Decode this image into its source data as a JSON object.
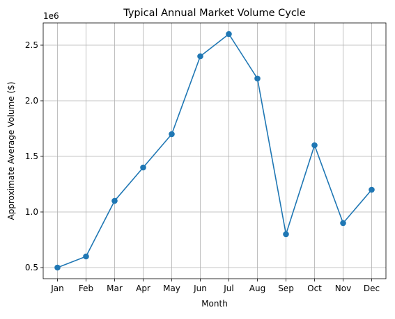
{
  "chart_data": {
    "type": "line",
    "title": "Typical Annual Market Volume Cycle",
    "xlabel": "Month",
    "ylabel": "Approximate Average Volume ($)",
    "y_scale_label": "1e6",
    "categories": [
      "Jan",
      "Feb",
      "Mar",
      "Apr",
      "May",
      "Jun",
      "Jul",
      "Aug",
      "Sep",
      "Oct",
      "Nov",
      "Dec"
    ],
    "series": [
      {
        "values": [
          500000,
          600000,
          1100000,
          1400000,
          1700000,
          2400000,
          2600000,
          2200000,
          800000,
          1600000,
          900000,
          1200000
        ],
        "color": "#1f77b4",
        "marker": "circle"
      }
    ],
    "ylim": [
      400000,
      2700000
    ],
    "yticks": [
      500000,
      1000000,
      1500000,
      2000000,
      2500000
    ],
    "ytick_labels": [
      "0.5",
      "1.0",
      "1.5",
      "2.0",
      "2.5"
    ],
    "grid": true,
    "legend": "none"
  }
}
